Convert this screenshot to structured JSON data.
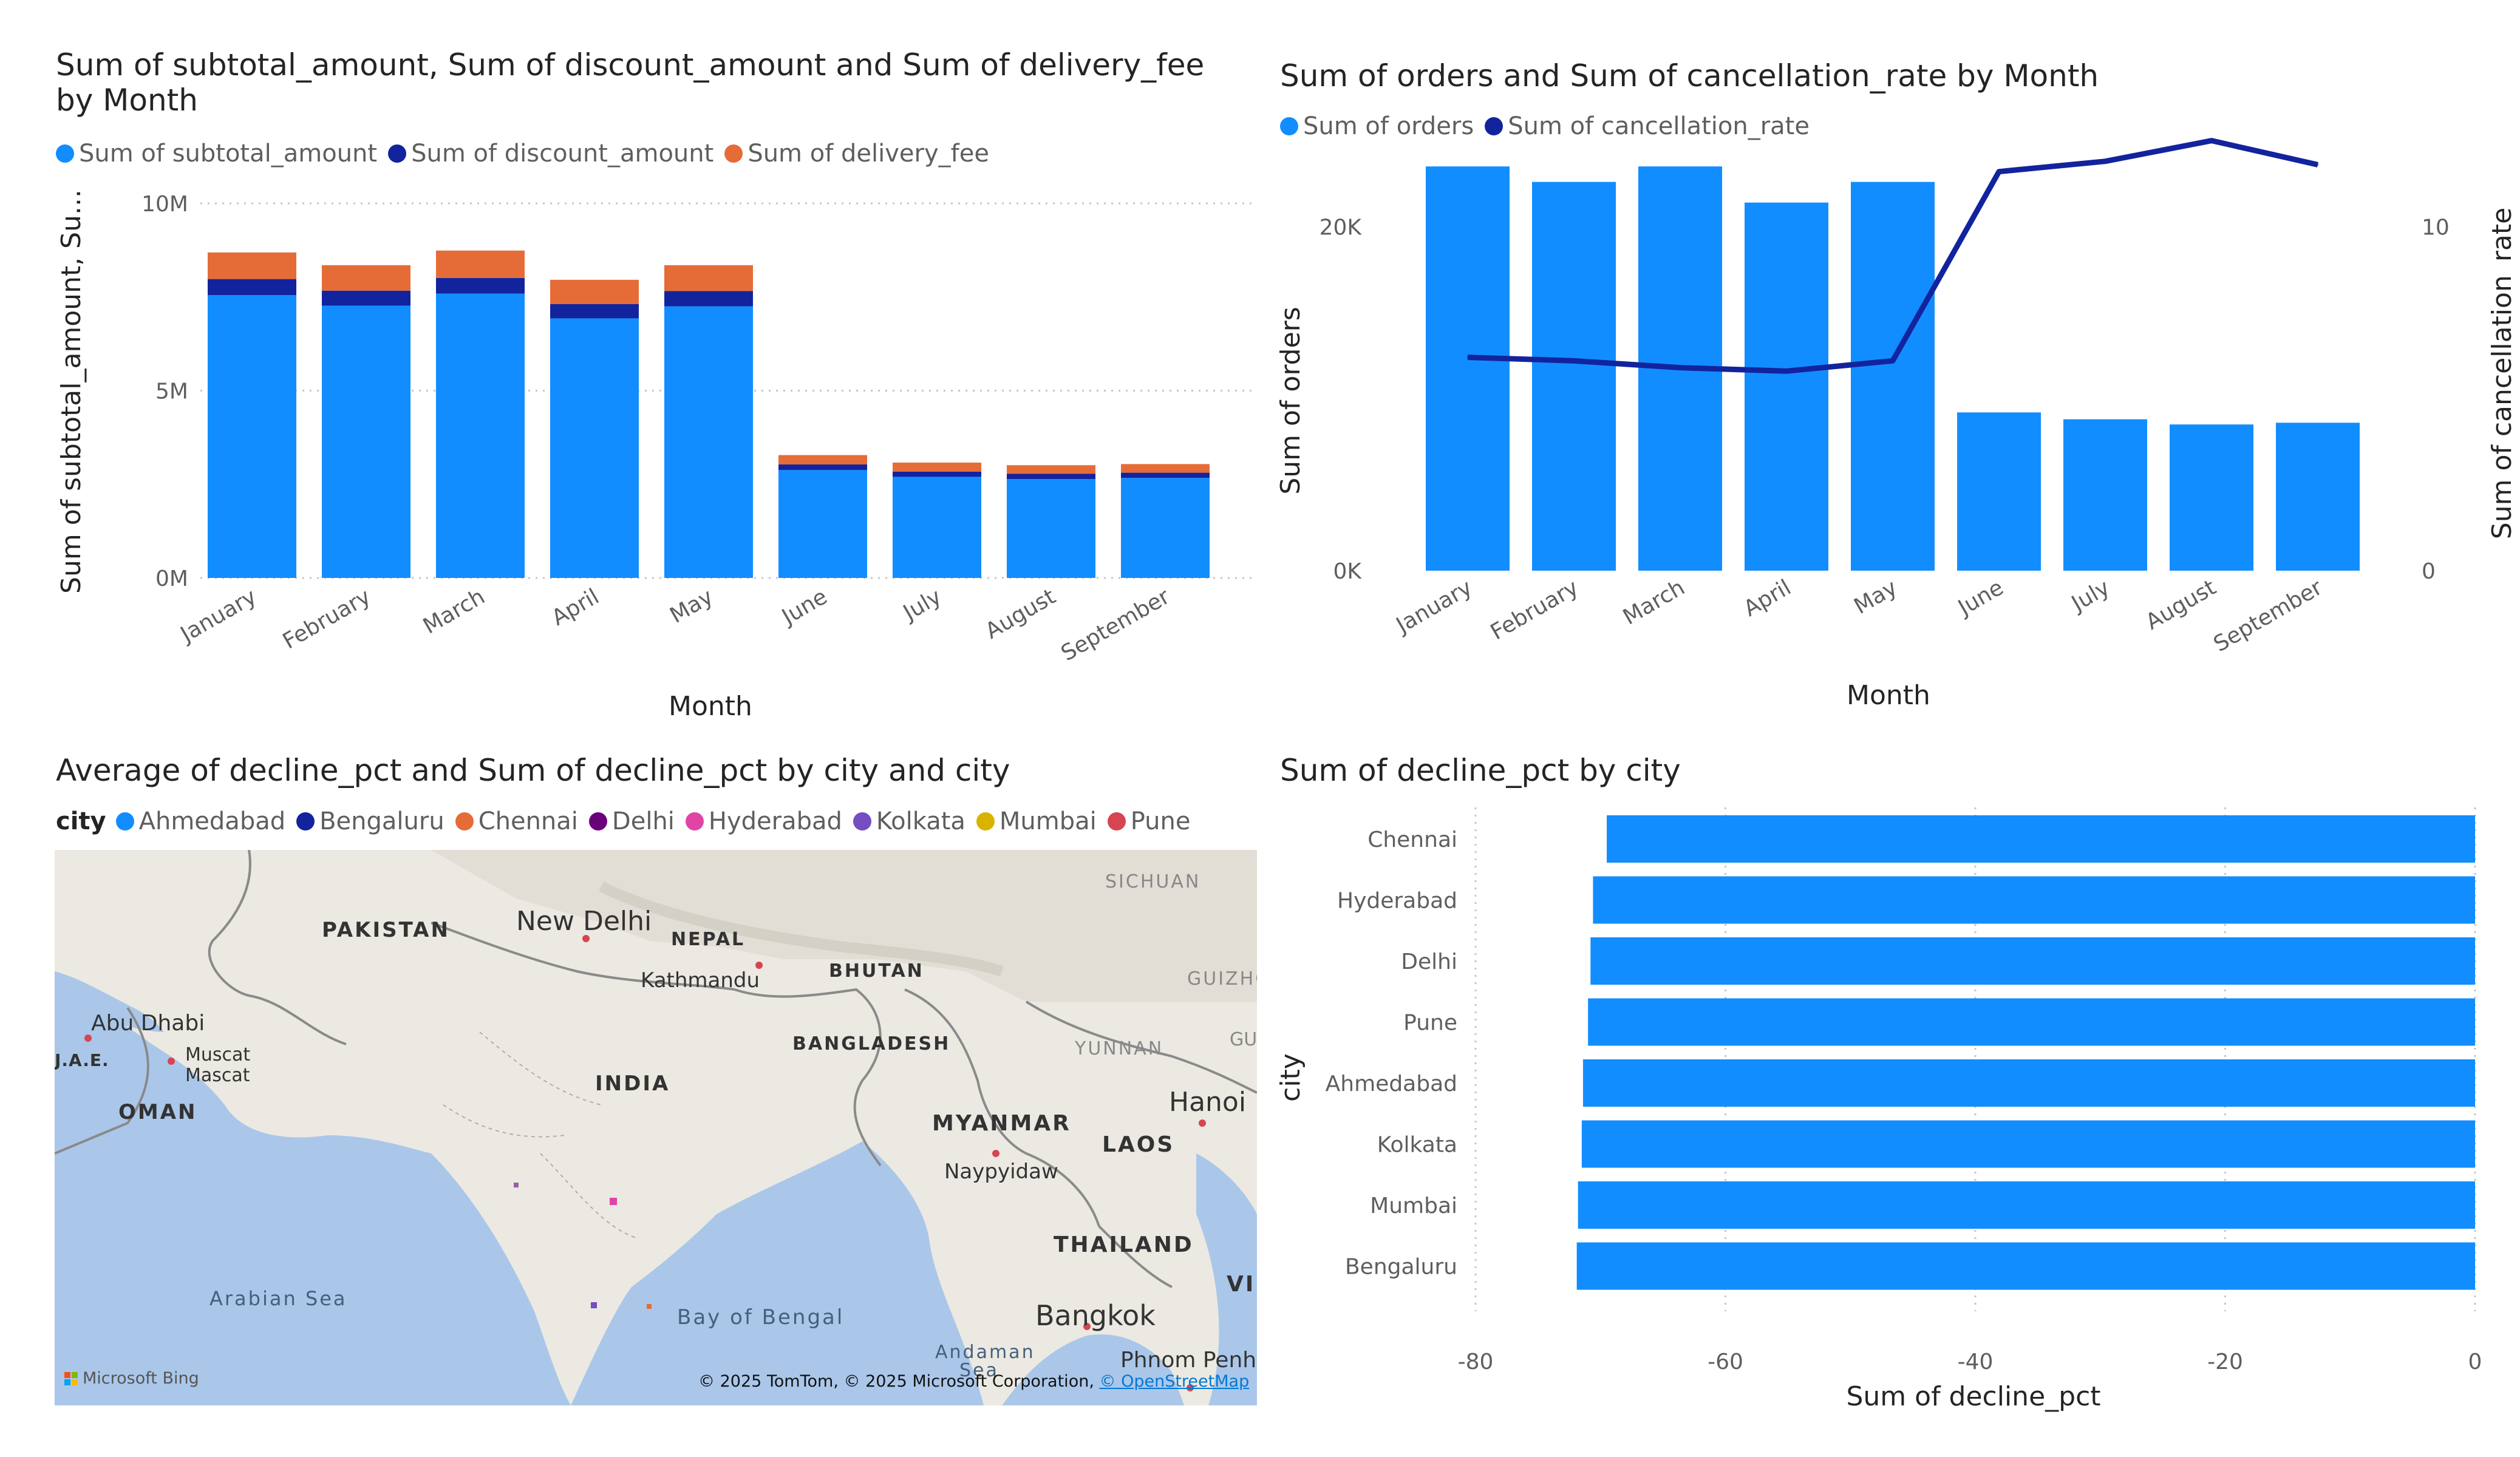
{
  "colors": {
    "primary": "#118DFF",
    "dark_blue": "#12239E",
    "orange": "#E66C37",
    "purple": "#6B007B",
    "pink": "#E044A7",
    "violet": "#744EC2",
    "gold": "#D9B300",
    "red": "#D64550",
    "axis_text": "#605e5c",
    "gridline": "#c8c6c4"
  },
  "chart_data": [
    {
      "type": "bar",
      "stacked": true,
      "title": "Sum of subtotal_amount, Sum of discount_amount and Sum of delivery_fee by Month",
      "xlabel": "Month",
      "ylabel": "Sum of subtotal_amount, Su...",
      "ylim": [
        0,
        10000000
      ],
      "yticks": [
        0,
        5000000,
        10000000
      ],
      "ytick_labels": [
        "0M",
        "5M",
        "10M"
      ],
      "legend_position": "top-left",
      "grid": true,
      "categories": [
        "January",
        "February",
        "March",
        "April",
        "May",
        "June",
        "July",
        "August",
        "September"
      ],
      "series": [
        {
          "name": "Sum of subtotal_amount",
          "values": [
            7550000,
            7270000,
            7590000,
            6930000,
            7250000,
            2880000,
            2700000,
            2640000,
            2670000
          ]
        },
        {
          "name": "Sum of discount_amount",
          "values": [
            430000,
            400000,
            420000,
            380000,
            410000,
            150000,
            140000,
            140000,
            140000
          ]
        },
        {
          "name": "Sum of delivery_fee",
          "values": [
            710000,
            680000,
            730000,
            650000,
            690000,
            250000,
            240000,
            230000,
            230000
          ]
        }
      ]
    },
    {
      "type": "bar",
      "combo": "bar+line",
      "title": "Sum of orders and Sum of cancellation_rate by Month",
      "xlabel": "Month",
      "ylabel": "Sum of orders",
      "y2label": "Sum of cancellation_rate",
      "ylim": [
        0,
        30000
      ],
      "yticks": [
        0,
        20000
      ],
      "ytick_labels": [
        "0K",
        "20K"
      ],
      "y2lim": [
        0,
        15
      ],
      "y2ticks": [
        0,
        10
      ],
      "y2tick_labels": [
        "0",
        "10"
      ],
      "legend_position": "top-left",
      "grid": false,
      "categories": [
        "January",
        "February",
        "March",
        "April",
        "May",
        "June",
        "July",
        "August",
        "September"
      ],
      "series": [
        {
          "name": "Sum of orders",
          "type": "bar",
          "values": [
            23500,
            22600,
            23500,
            21400,
            22600,
            9200,
            8800,
            8500,
            8600
          ]
        },
        {
          "name": "Sum of cancellation_rate",
          "type": "line",
          "values": [
            6.2,
            6.1,
            5.9,
            5.8,
            6.1,
            11.6,
            11.9,
            12.5,
            11.8
          ]
        }
      ]
    },
    {
      "type": "bar",
      "orientation": "horizontal",
      "title": "Sum of decline_pct by city",
      "xlabel": "Sum of decline_pct",
      "ylabel": "city",
      "xlim": [
        -80,
        0
      ],
      "xticks": [
        -80,
        -60,
        -40,
        -20,
        0
      ],
      "grid": true,
      "categories": [
        "Chennai",
        "Hyderabad",
        "Delhi",
        "Pune",
        "Ahmedabad",
        "Kolkata",
        "Mumbai",
        "Bengaluru"
      ],
      "values": [
        -69.5,
        -70.6,
        -70.8,
        -71.0,
        -71.4,
        -71.5,
        -71.8,
        -71.9
      ]
    }
  ],
  "map": {
    "title": "Average of decline_pct and Sum of decline_pct by city and city",
    "legend_title": "city",
    "legend": [
      {
        "name": "Ahmedabad",
        "color": "#118DFF"
      },
      {
        "name": "Bengaluru",
        "color": "#12239E"
      },
      {
        "name": "Chennai",
        "color": "#E66C37"
      },
      {
        "name": "Delhi",
        "color": "#6B007B"
      },
      {
        "name": "Hyderabad",
        "color": "#E044A7"
      },
      {
        "name": "Kolkata",
        "color": "#744EC2"
      },
      {
        "name": "Mumbai",
        "color": "#D9B300"
      },
      {
        "name": "Pune",
        "color": "#D64550"
      }
    ],
    "labels": {
      "pakistan": "PAKISTAN",
      "new_delhi": "New Delhi",
      "nepal": "NEPAL",
      "kathmandu": "Kathmandu",
      "bhutan": "BHUTAN",
      "sichuan": "SICHUAN",
      "guizhou": "GUIZHO",
      "abu_dhabi": "Abu Dhabi",
      "uae": "J.A.E.",
      "muscat1": "Muscat",
      "muscat2": "Mascat",
      "oman": "OMAN",
      "india": "INDIA",
      "bangladesh": "BANGLADESH",
      "yunnan": "YUNNAN",
      "gu": "GU",
      "hanoi": "Hanoi",
      "myanmar": "MYANMAR",
      "laos": "LAOS",
      "naypyidaw": "Naypyidaw",
      "thailand": "THAILAND",
      "vi": "VI",
      "arabian_sea": "Arabian Sea",
      "bay_of_bengal": "Bay of Bengal",
      "bangkok": "Bangkok",
      "andaman1": "Andaman",
      "andaman2": "Sea",
      "phnom_penh": "Phnom Penh"
    },
    "bing": "Microsoft Bing",
    "credit": "© 2025 TomTom, © 2025 Microsoft Corporation,",
    "credit_link": "© OpenStreetMap"
  }
}
